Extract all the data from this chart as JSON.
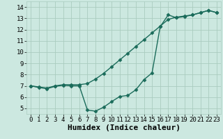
{
  "xlabel": "Humidex (Indice chaleur)",
  "bg_color": "#cce8e0",
  "grid_color": "#aaccbf",
  "line_color": "#1a6b5a",
  "xlim": [
    -0.5,
    23.5
  ],
  "ylim": [
    4.5,
    14.5
  ],
  "xticks": [
    0,
    1,
    2,
    3,
    4,
    5,
    6,
    7,
    8,
    9,
    10,
    11,
    12,
    13,
    14,
    15,
    16,
    17,
    18,
    19,
    20,
    21,
    22,
    23
  ],
  "yticks": [
    5,
    6,
    7,
    8,
    9,
    10,
    11,
    12,
    13,
    14
  ],
  "curve1_x": [
    0,
    1,
    2,
    3,
    4,
    5,
    6,
    7,
    8,
    9,
    10,
    11,
    12,
    13,
    14,
    15,
    16,
    17,
    18,
    19,
    20,
    21,
    22,
    23
  ],
  "curve1_y": [
    7.0,
    6.9,
    6.8,
    7.0,
    7.1,
    7.1,
    7.1,
    7.2,
    7.6,
    8.1,
    8.7,
    9.3,
    9.9,
    10.5,
    11.1,
    11.7,
    12.3,
    12.9,
    13.1,
    13.2,
    13.3,
    13.5,
    13.7,
    13.5
  ],
  "curve2_x": [
    0,
    1,
    2,
    3,
    4,
    5,
    6,
    7,
    8,
    9,
    10,
    11,
    12,
    13,
    14,
    15,
    16,
    17,
    18,
    19,
    20,
    21,
    22,
    23
  ],
  "curve2_y": [
    7.0,
    6.85,
    6.75,
    6.95,
    7.05,
    7.0,
    7.0,
    4.85,
    4.75,
    5.1,
    5.6,
    6.05,
    6.15,
    6.65,
    7.55,
    8.15,
    12.25,
    13.3,
    13.05,
    13.15,
    13.3,
    13.5,
    13.7,
    13.5
  ],
  "marker": "D",
  "markersize": 2.5,
  "linewidth": 1.0,
  "xlabel_fontsize": 8,
  "tick_fontsize": 6.5
}
